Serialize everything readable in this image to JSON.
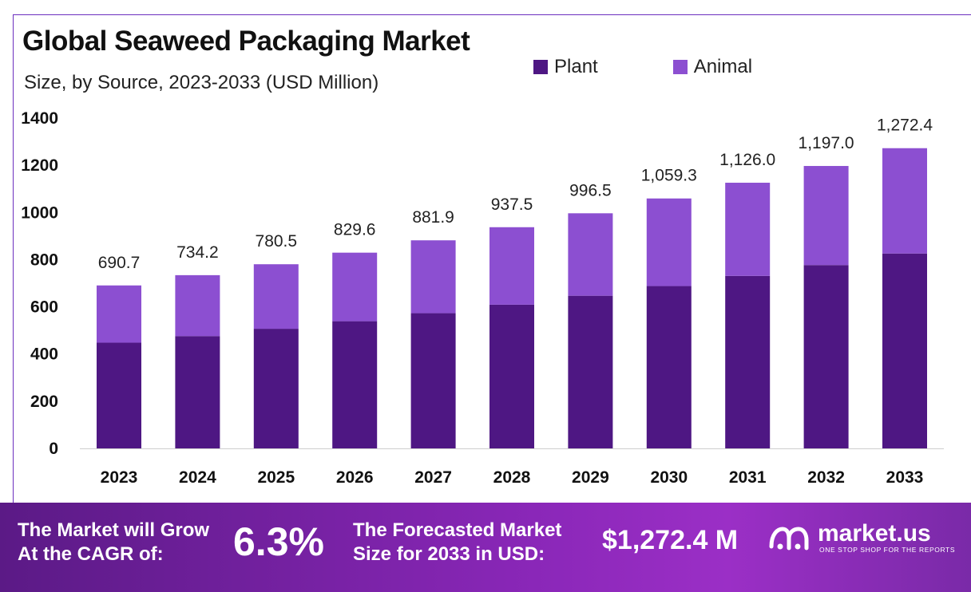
{
  "header": {
    "title": "Global Seaweed Packaging Market",
    "subtitle": "Size, by Source, 2023-2033 (USD Million)"
  },
  "legend": [
    {
      "label": "Plant",
      "color": "#4e1783"
    },
    {
      "label": "Animal",
      "color": "#8c4fd1"
    }
  ],
  "chart_data": {
    "type": "bar",
    "stacked": true,
    "categories": [
      "2023",
      "2024",
      "2025",
      "2026",
      "2027",
      "2028",
      "2029",
      "2030",
      "2031",
      "2032",
      "2033"
    ],
    "series": [
      {
        "name": "Plant",
        "values": [
          448,
          476,
          507,
          539,
          573,
          609,
          647,
          688,
          731,
          777,
          826
        ]
      },
      {
        "name": "Animal",
        "values": [
          242.7,
          258.2,
          273.5,
          290.6,
          308.9,
          328.5,
          349.5,
          371.3,
          395.0,
          420.0,
          446.4
        ]
      }
    ],
    "totals_labels": [
      "690.7",
      "734.2",
      "780.5",
      "829.6",
      "881.9",
      "937.5",
      "996.5",
      "1,059.3",
      "1,126.0",
      "1,197.0",
      "1,272.4"
    ],
    "ylim": [
      0,
      1400
    ],
    "yticks": [
      0,
      200,
      400,
      600,
      800,
      1000,
      1200,
      1400
    ],
    "grid": false,
    "legend_position": "top-right"
  },
  "banner": {
    "cagr_label_line1": "The Market will Grow",
    "cagr_label_line2": "At the CAGR of:",
    "cagr_value": "6.3%",
    "forecast_label_line1": "The Forecasted Market",
    "forecast_label_line2": "Size for 2033 in USD:",
    "forecast_value": "$1,272.4 M",
    "brand_name": "market.us",
    "brand_tagline": "ONE STOP SHOP FOR THE REPORTS",
    "brand_icon": "market-us-logo-icon"
  }
}
